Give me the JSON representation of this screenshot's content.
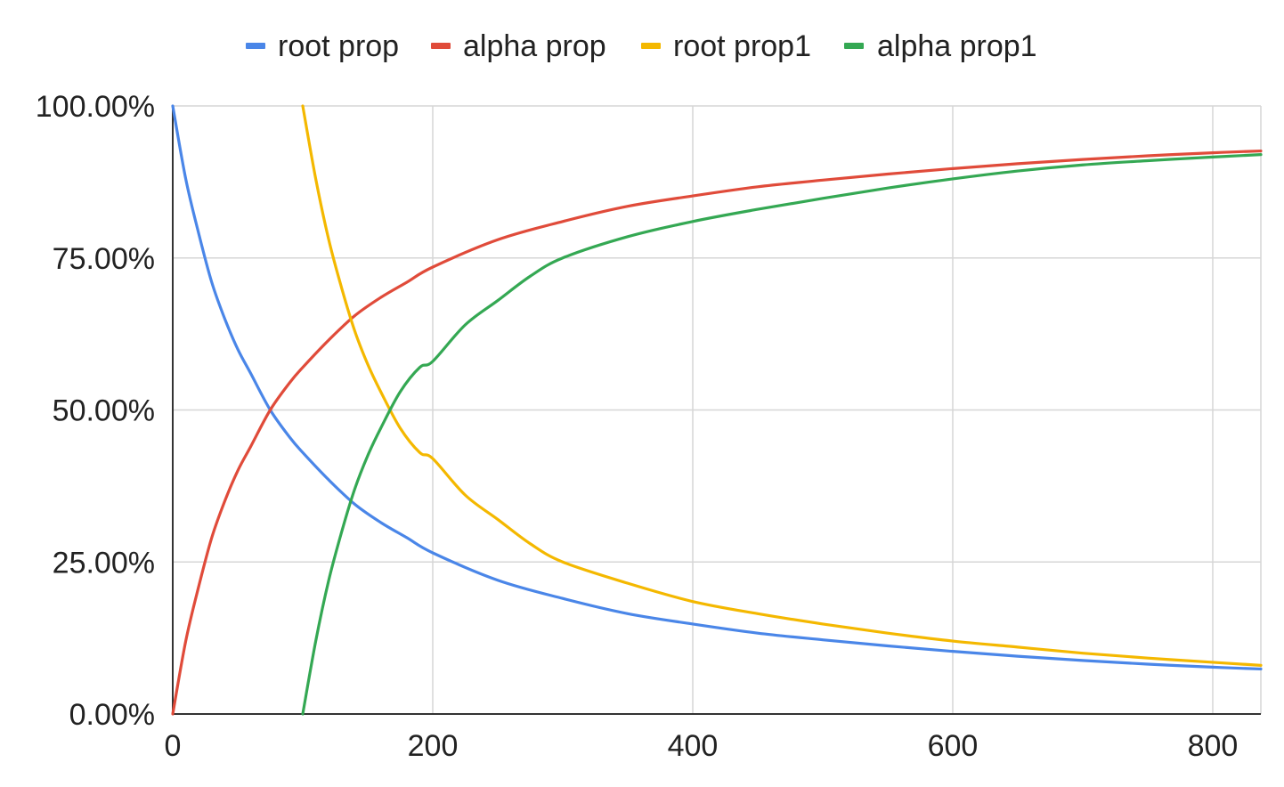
{
  "chart_data": {
    "type": "line",
    "title": "",
    "xlabel": "",
    "ylabel": "",
    "xlim": [
      0,
      837
    ],
    "ylim": [
      0,
      1
    ],
    "grid": true,
    "legend_position": "top",
    "x_ticks": [
      {
        "value": 0,
        "label": "0"
      },
      {
        "value": 200,
        "label": "200"
      },
      {
        "value": 400,
        "label": "400"
      },
      {
        "value": 600,
        "label": "600"
      },
      {
        "value": 800,
        "label": "800"
      }
    ],
    "y_ticks": [
      {
        "value": 0,
        "label": "0.00%"
      },
      {
        "value": 0.25,
        "label": "25.00%"
      },
      {
        "value": 0.5,
        "label": "50.00%"
      },
      {
        "value": 0.75,
        "label": "75.00%"
      },
      {
        "value": 1,
        "label": "100.00%"
      }
    ],
    "series": [
      {
        "name": "root prop",
        "color": "#4a86e8",
        "x": [
          0,
          10,
          20,
          30,
          40,
          50,
          60,
          75,
          90,
          100,
          120,
          140,
          160,
          180,
          200,
          250,
          300,
          350,
          400,
          450,
          500,
          550,
          600,
          650,
          700,
          750,
          800,
          837
        ],
        "y": [
          1.0,
          0.88,
          0.79,
          0.71,
          0.65,
          0.6,
          0.56,
          0.5,
          0.455,
          0.43,
          0.385,
          0.345,
          0.315,
          0.29,
          0.265,
          0.22,
          0.19,
          0.165,
          0.148,
          0.133,
          0.122,
          0.112,
          0.103,
          0.095,
          0.088,
          0.082,
          0.077,
          0.074
        ]
      },
      {
        "name": "alpha prop",
        "color": "#e04b3a",
        "x": [
          0,
          10,
          20,
          30,
          40,
          50,
          60,
          75,
          90,
          100,
          120,
          140,
          160,
          180,
          200,
          250,
          300,
          350,
          400,
          450,
          500,
          550,
          600,
          650,
          700,
          750,
          800,
          837
        ],
        "y": [
          0.0,
          0.12,
          0.21,
          0.29,
          0.35,
          0.4,
          0.44,
          0.5,
          0.545,
          0.57,
          0.615,
          0.655,
          0.685,
          0.71,
          0.735,
          0.78,
          0.81,
          0.835,
          0.852,
          0.867,
          0.878,
          0.888,
          0.897,
          0.905,
          0.912,
          0.918,
          0.923,
          0.926
        ]
      },
      {
        "name": "root prop1",
        "color": "#f4b800",
        "x": [
          100,
          110,
          120,
          130,
          140,
          150,
          160,
          175,
          190,
          200,
          225,
          250,
          275,
          300,
          350,
          400,
          450,
          500,
          550,
          600,
          650,
          700,
          750,
          800,
          837
        ],
        "y": [
          1.0,
          0.88,
          0.78,
          0.7,
          0.63,
          0.575,
          0.53,
          0.47,
          0.43,
          0.42,
          0.36,
          0.32,
          0.28,
          0.25,
          0.215,
          0.185,
          0.165,
          0.148,
          0.133,
          0.12,
          0.11,
          0.1,
          0.092,
          0.085,
          0.08
        ]
      },
      {
        "name": "alpha prop1",
        "color": "#34a853",
        "x": [
          100,
          110,
          120,
          130,
          140,
          150,
          160,
          175,
          190,
          200,
          225,
          250,
          275,
          300,
          350,
          400,
          450,
          500,
          550,
          600,
          650,
          700,
          750,
          800,
          837
        ],
        "y": [
          0.0,
          0.12,
          0.22,
          0.3,
          0.37,
          0.425,
          0.47,
          0.53,
          0.57,
          0.58,
          0.64,
          0.68,
          0.72,
          0.75,
          0.785,
          0.81,
          0.83,
          0.848,
          0.865,
          0.88,
          0.893,
          0.903,
          0.91,
          0.916,
          0.92
        ]
      }
    ]
  }
}
